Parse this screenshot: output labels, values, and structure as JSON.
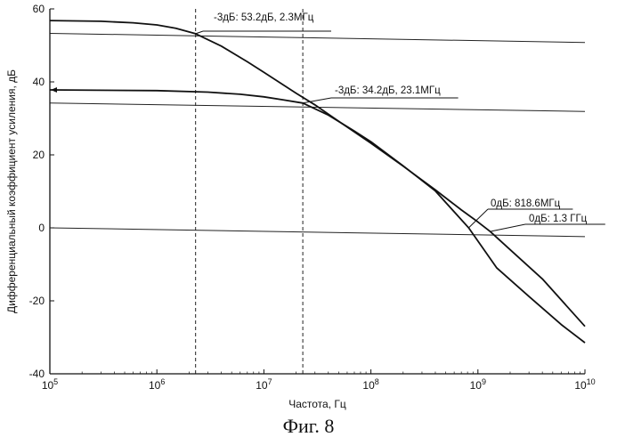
{
  "caption": "Фиг. 8",
  "chart_data": {
    "type": "line",
    "title": "",
    "xlabel": "Частота, Гц",
    "ylabel": "Дифференциальный коэффициент усиления, дБ",
    "xscale": "log",
    "xlim": [
      100000,
      10000000000
    ],
    "ylim": [
      -40,
      60
    ],
    "x_ticks": [
      {
        "value": 100000,
        "base": "10",
        "exp": "5"
      },
      {
        "value": 1000000,
        "base": "10",
        "exp": "6"
      },
      {
        "value": 10000000,
        "base": "10",
        "exp": "7"
      },
      {
        "value": 100000000,
        "base": "10",
        "exp": "8"
      },
      {
        "value": 1000000000,
        "base": "10",
        "exp": "9"
      },
      {
        "value": 10000000000,
        "base": "10",
        "exp": "10"
      }
    ],
    "y_ticks": [
      "60",
      "40",
      "20",
      "0",
      "-20",
      "-40"
    ],
    "grid": false,
    "series": [
      {
        "x": [
          100000,
          300000,
          600000,
          1000000,
          1500000,
          2300000,
          4000000,
          7000000,
          10000000,
          20000000,
          30000000,
          50000000,
          100000000,
          200000000,
          400000000,
          700000000,
          1000000000,
          1300000000,
          2000000000,
          4000000000,
          10000000000
        ],
        "y": [
          56.8,
          56.6,
          56.2,
          55.6,
          54.7,
          53.2,
          49.8,
          45.5,
          42.6,
          36.9,
          33.7,
          29.2,
          23.2,
          16.9,
          10.4,
          4.9,
          1.6,
          -1.0,
          -6.0,
          -14.0,
          -27.0
        ]
      },
      {
        "x": [
          100000,
          1000000,
          3000000,
          6000000,
          10000000,
          15000000,
          23100000,
          40000000,
          70000000,
          100000000,
          200000000,
          400000000,
          818600000,
          1500000000,
          3000000000,
          6000000000,
          10000000000
        ],
        "y": [
          37.8,
          37.6,
          37.2,
          36.6,
          35.9,
          35.1,
          34.2,
          30.9,
          26.5,
          23.6,
          17.0,
          10.1,
          0.0,
          -11.0,
          -18.8,
          -26.5,
          -31.5
        ]
      }
    ],
    "reference_lines": [
      {
        "y": [
          53.3,
          50.8
        ]
      },
      {
        "y": [
          34.2,
          31.9
        ]
      },
      {
        "y": [
          0.0,
          -2.4
        ]
      }
    ],
    "markers": [
      {
        "x": 2300000
      },
      {
        "x": 23100000
      }
    ],
    "annotations": [
      {
        "text": "-3дБ: 53.2дБ, 2.3МГц",
        "x": 2300000,
        "y": 53.2
      },
      {
        "text": "-3дБ: 34.2дБ, 23.1МГц",
        "x": 23100000,
        "y": 34.2
      },
      {
        "text": "0дБ:  818.6МГц",
        "x": 818600000,
        "y": 0
      },
      {
        "text": "0дБ:  1.3 ГГц",
        "x": 1300000000,
        "y": -1.0
      }
    ]
  }
}
